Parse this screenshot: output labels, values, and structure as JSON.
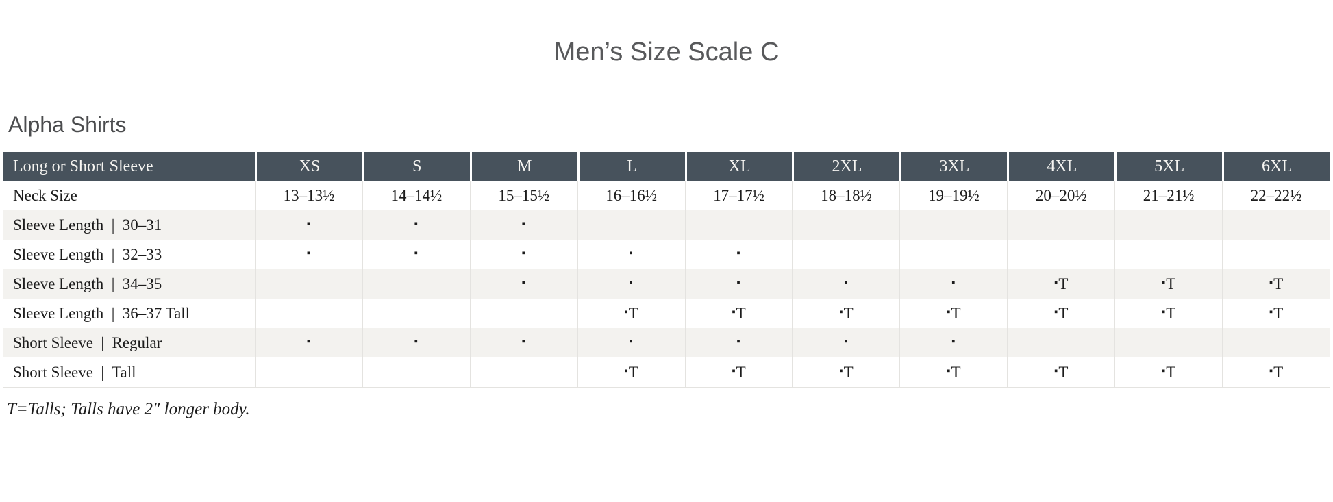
{
  "page": {
    "title": "Men’s Size Scale C",
    "section_heading": "Alpha Shirts",
    "footnote": "T=Talls; Talls have 2″ longer body."
  },
  "colors": {
    "header_bg": "#47525C",
    "header_text": "#F5F4F1",
    "shaded_row_bg": "#F3F2EF",
    "body_text": "#1C1C1C",
    "heading_text": "#58595B",
    "grid_line": "#E4E3E0"
  },
  "table": {
    "marker": "▪",
    "tall_suffix": "T",
    "header": {
      "label": "Long or Short Sleeve",
      "sizes": [
        "XS",
        "S",
        "M",
        "L",
        "XL",
        "2XL",
        "3XL",
        "4XL",
        "5XL",
        "6XL"
      ]
    },
    "rows": [
      {
        "label": "Neck Size",
        "shaded": false,
        "cells": [
          "13–13½",
          "14–14½",
          "15–15½",
          "16–16½",
          "17–17½",
          "18–18½",
          "19–19½",
          "20–20½",
          "21–21½",
          "22–22½"
        ]
      },
      {
        "label": "Sleeve Length  |  30–31",
        "shaded": true,
        "cells": [
          "▪",
          "▪",
          "▪",
          "",
          "",
          "",
          "",
          "",
          "",
          ""
        ]
      },
      {
        "label": "Sleeve Length  |  32–33",
        "shaded": false,
        "cells": [
          "▪",
          "▪",
          "▪",
          "▪",
          "▪",
          "",
          "",
          "",
          "",
          ""
        ]
      },
      {
        "label": "Sleeve Length  |  34–35",
        "shaded": true,
        "cells": [
          "",
          "",
          "▪",
          "▪",
          "▪",
          "▪",
          "▪",
          "▪T",
          "▪T",
          "▪T"
        ]
      },
      {
        "label": "Sleeve Length  |  36–37 Tall",
        "shaded": false,
        "cells": [
          "",
          "",
          "",
          "▪T",
          "▪T",
          "▪T",
          "▪T",
          "▪T",
          "▪T",
          "▪T"
        ]
      },
      {
        "label": "Short Sleeve  |  Regular",
        "shaded": true,
        "cells": [
          "▪",
          "▪",
          "▪",
          "▪",
          "▪",
          "▪",
          "▪",
          "",
          "",
          ""
        ]
      },
      {
        "label": "Short Sleeve  |  Tall",
        "shaded": false,
        "cells": [
          "",
          "",
          "",
          "▪T",
          "▪T",
          "▪T",
          "▪T",
          "▪T",
          "▪T",
          "▪T"
        ]
      }
    ]
  }
}
